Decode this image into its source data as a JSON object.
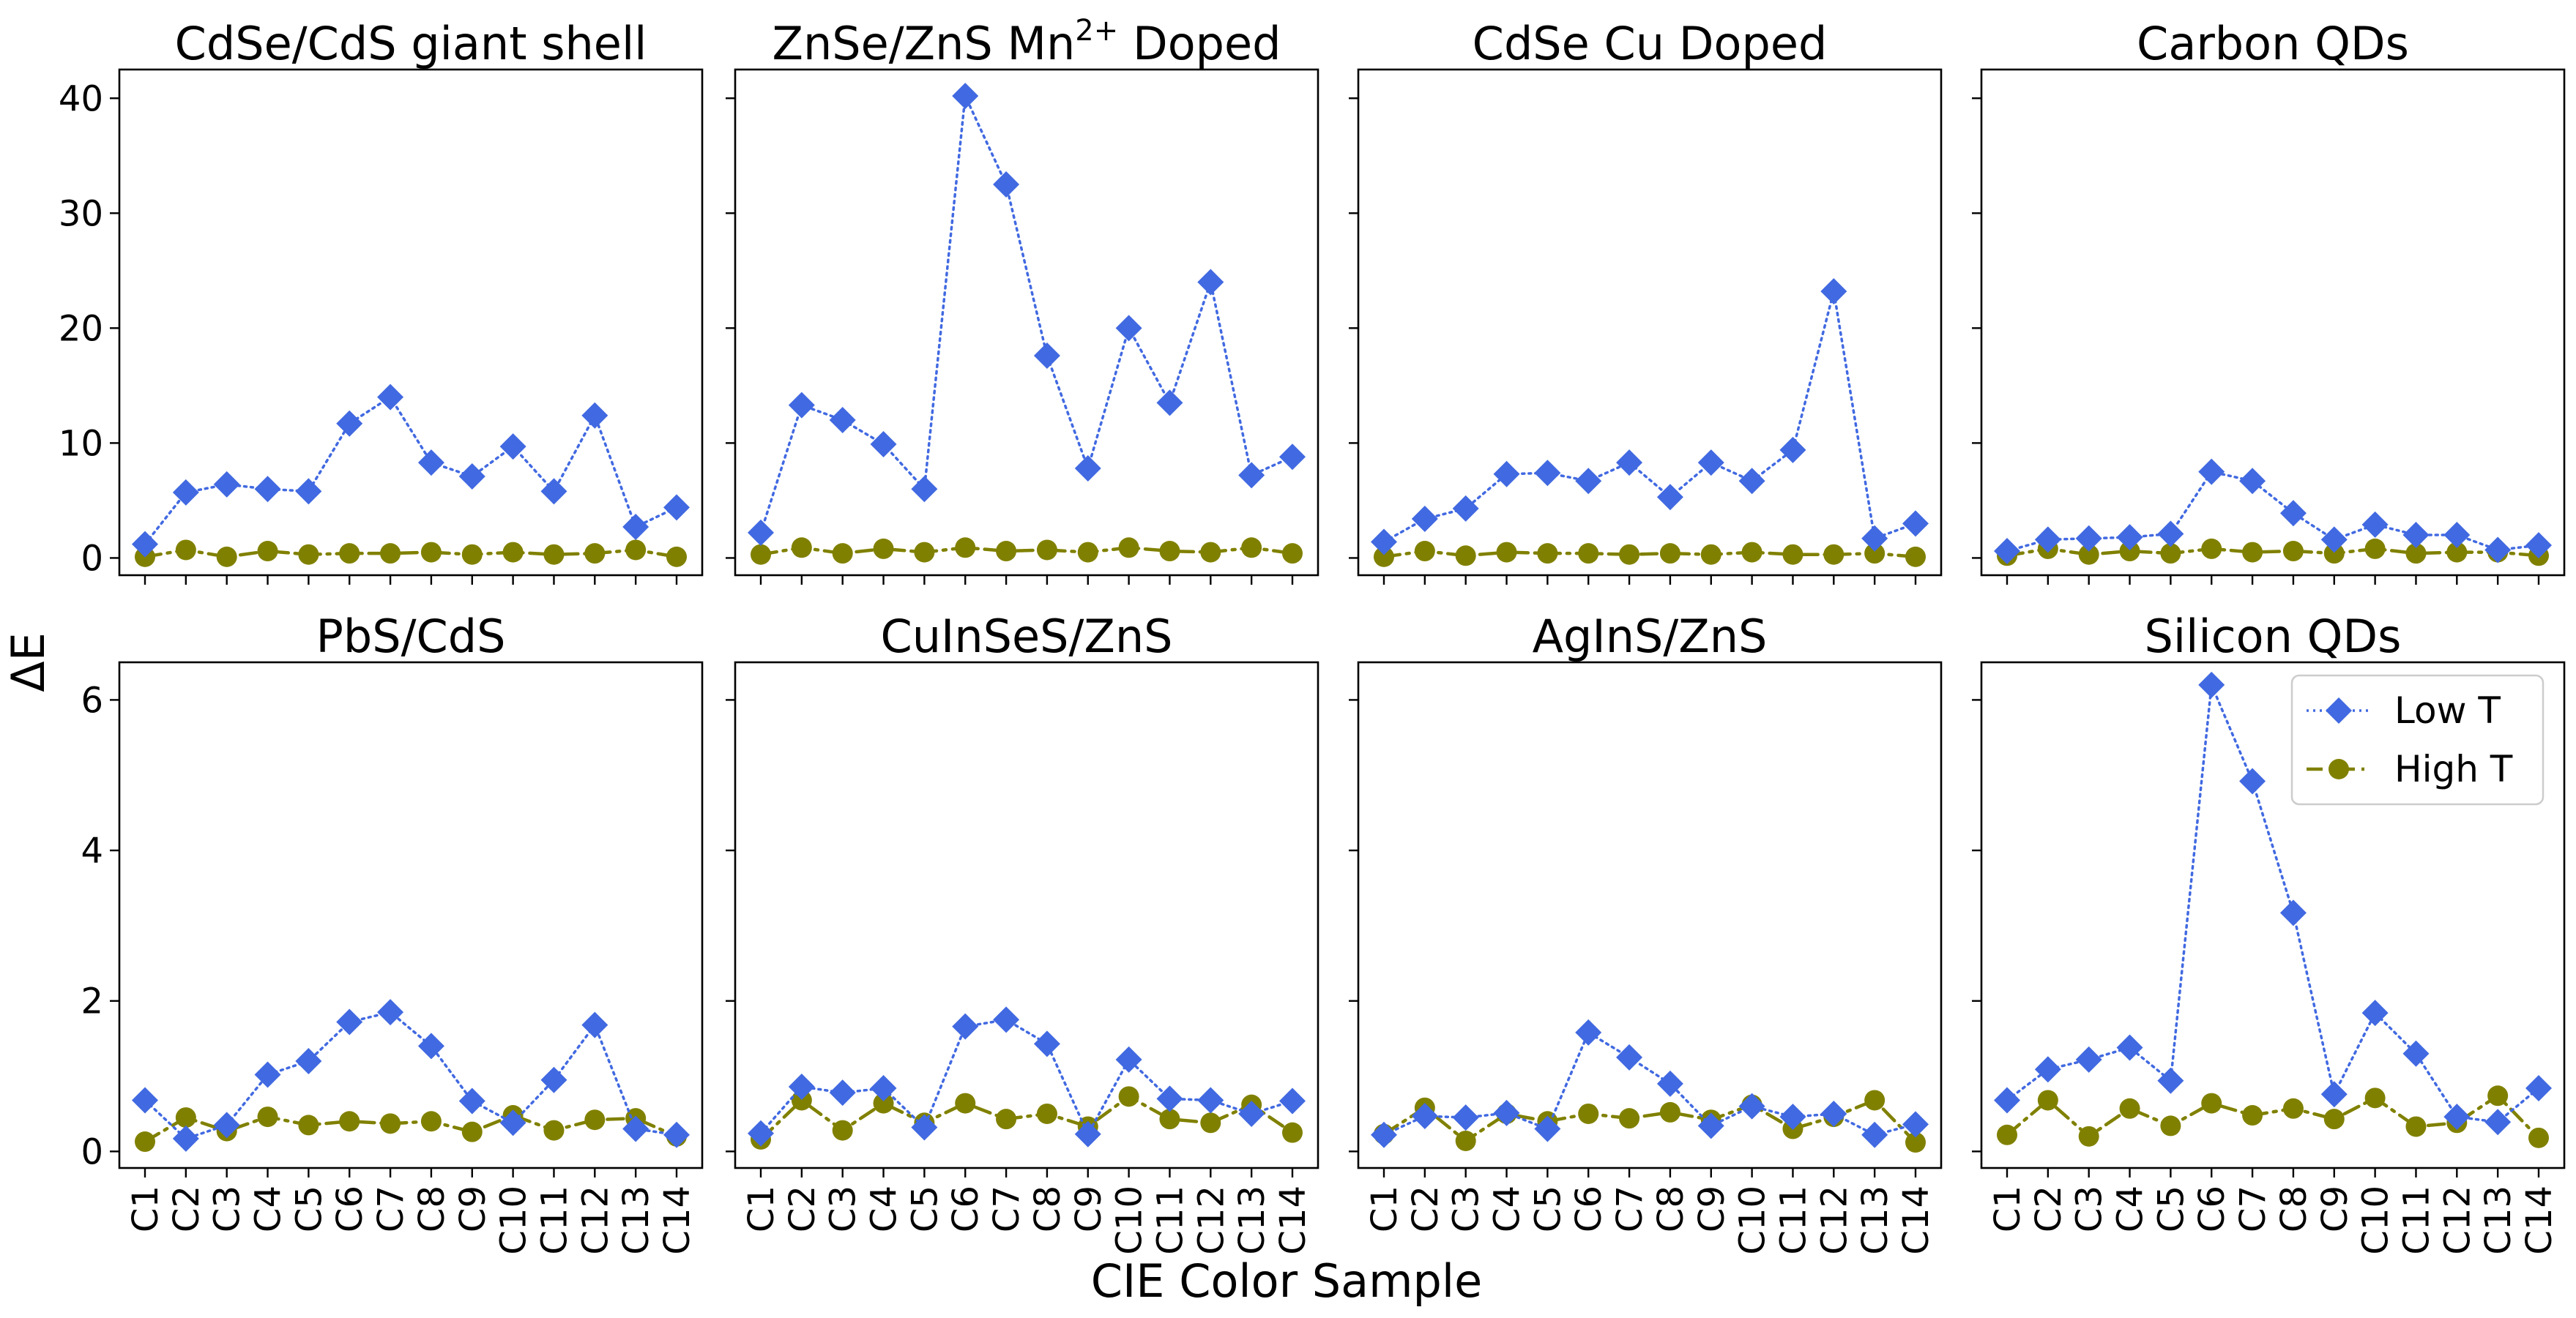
{
  "chart_data": {
    "type": "line",
    "xlabel": "CIE Color Sample",
    "ylabel": "ΔE",
    "categories": [
      "C1",
      "C2",
      "C3",
      "C4",
      "C5",
      "C6",
      "C7",
      "C8",
      "C9",
      "C10",
      "C11",
      "C12",
      "C13",
      "C14"
    ],
    "legend": {
      "placement": "top-right of Silicon QDs panel",
      "entries": [
        "Low T",
        "High T"
      ]
    },
    "series_styles": [
      {
        "name": "Low T",
        "color": "#4169e1",
        "marker": "diamond",
        "line": "dotted"
      },
      {
        "name": "High T",
        "color": "#808000",
        "marker": "circle",
        "line": "dash-dot"
      }
    ],
    "rows": [
      {
        "ylim": [
          -1.5,
          42.5
        ],
        "yticks": [
          0,
          10,
          20,
          30,
          40
        ]
      },
      {
        "ylim": [
          -0.22,
          6.5
        ],
        "yticks": [
          0,
          2,
          4,
          6
        ]
      }
    ],
    "panels": [
      {
        "title": "CdSe/CdS giant shell",
        "series": [
          {
            "name": "Low T",
            "values": [
              1.2,
              5.7,
              6.4,
              6.0,
              5.8,
              11.7,
              14.0,
              8.3,
              7.1,
              9.7,
              5.8,
              12.4,
              2.7,
              4.4
            ]
          },
          {
            "name": "High T",
            "values": [
              0.1,
              0.7,
              0.1,
              0.6,
              0.3,
              0.4,
              0.4,
              0.5,
              0.3,
              0.5,
              0.3,
              0.4,
              0.7,
              0.1
            ]
          }
        ]
      },
      {
        "title": "ZnSe/ZnS Mn",
        "title_sup": "2+",
        "title_suffix": " Doped",
        "series": [
          {
            "name": "Low T",
            "values": [
              2.2,
              13.3,
              12.0,
              9.9,
              6.0,
              40.2,
              32.5,
              17.6,
              7.8,
              20.0,
              13.5,
              24.0,
              7.2,
              8.8
            ]
          },
          {
            "name": "High T",
            "values": [
              0.3,
              0.9,
              0.4,
              0.8,
              0.5,
              0.9,
              0.6,
              0.7,
              0.5,
              0.9,
              0.6,
              0.5,
              0.9,
              0.4
            ]
          }
        ]
      },
      {
        "title": "CdSe Cu Doped",
        "series": [
          {
            "name": "Low T",
            "values": [
              1.4,
              3.4,
              4.3,
              7.3,
              7.4,
              6.7,
              8.3,
              5.3,
              8.3,
              6.7,
              9.4,
              23.2,
              1.7,
              3.0
            ]
          },
          {
            "name": "High T",
            "values": [
              0.1,
              0.6,
              0.2,
              0.5,
              0.4,
              0.4,
              0.3,
              0.4,
              0.3,
              0.5,
              0.3,
              0.3,
              0.4,
              0.1
            ]
          }
        ]
      },
      {
        "title": "Carbon QDs",
        "series": [
          {
            "name": "Low T",
            "values": [
              0.6,
              1.6,
              1.7,
              1.8,
              2.1,
              7.5,
              6.7,
              3.9,
              1.6,
              2.9,
              2.0,
              2.0,
              0.7,
              1.1
            ]
          },
          {
            "name": "High T",
            "values": [
              0.2,
              0.8,
              0.3,
              0.6,
              0.4,
              0.8,
              0.5,
              0.6,
              0.4,
              0.8,
              0.4,
              0.5,
              0.5,
              0.2
            ]
          }
        ]
      },
      {
        "title": "PbS/CdS",
        "series": [
          {
            "name": "Low T",
            "values": [
              0.68,
              0.17,
              0.35,
              1.02,
              1.2,
              1.72,
              1.85,
              1.4,
              0.67,
              0.38,
              0.95,
              1.68,
              0.3,
              0.22
            ]
          },
          {
            "name": "High T",
            "values": [
              0.13,
              0.45,
              0.27,
              0.46,
              0.35,
              0.4,
              0.37,
              0.4,
              0.26,
              0.48,
              0.28,
              0.42,
              0.44,
              0.2
            ]
          }
        ]
      },
      {
        "title": "CuInSeS/ZnS",
        "series": [
          {
            "name": "Low T",
            "values": [
              0.24,
              0.86,
              0.78,
              0.84,
              0.32,
              1.66,
              1.75,
              1.43,
              0.23,
              1.22,
              0.7,
              0.68,
              0.5,
              0.67
            ]
          },
          {
            "name": "High T",
            "values": [
              0.16,
              0.68,
              0.28,
              0.64,
              0.38,
              0.64,
              0.43,
              0.5,
              0.33,
              0.73,
              0.43,
              0.38,
              0.62,
              0.25
            ]
          }
        ]
      },
      {
        "title": "AgInS/ZnS",
        "series": [
          {
            "name": "Low T",
            "values": [
              0.22,
              0.47,
              0.45,
              0.51,
              0.3,
              1.58,
              1.25,
              0.9,
              0.34,
              0.6,
              0.46,
              0.5,
              0.22,
              0.36
            ]
          },
          {
            "name": "High T",
            "values": [
              0.23,
              0.58,
              0.14,
              0.5,
              0.4,
              0.5,
              0.44,
              0.52,
              0.42,
              0.62,
              0.3,
              0.46,
              0.68,
              0.12
            ]
          }
        ]
      },
      {
        "title": "Silicon QDs",
        "series": [
          {
            "name": "Low T",
            "values": [
              0.68,
              1.09,
              1.22,
              1.38,
              0.94,
              6.2,
              4.92,
              3.17,
              0.76,
              1.84,
              1.3,
              0.46,
              0.39,
              0.84
            ]
          },
          {
            "name": "High T",
            "values": [
              0.22,
              0.68,
              0.2,
              0.57,
              0.34,
              0.64,
              0.48,
              0.57,
              0.43,
              0.71,
              0.33,
              0.38,
              0.74,
              0.18
            ]
          }
        ]
      }
    ]
  }
}
